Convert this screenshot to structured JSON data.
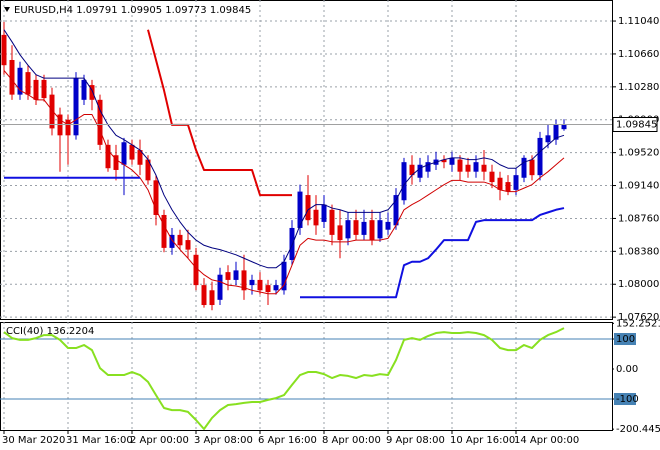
{
  "chart_data": [
    {
      "type": "candlestick",
      "title": "EURUSD,H4",
      "categories": [
        "30 Mar 2020",
        null,
        null,
        null,
        null,
        null,
        null,
        null,
        "31 Mar 16:00",
        null,
        null,
        null,
        null,
        null,
        null,
        null,
        "2 Apr 00:00",
        null,
        null,
        null,
        null,
        null,
        null,
        null,
        "3 Apr 08:00",
        null,
        null,
        null,
        null,
        null,
        null,
        null,
        "6 Apr 16:00",
        null,
        null,
        null,
        null,
        null,
        null,
        null,
        "8 Apr 00:00",
        null,
        null,
        null,
        null,
        null,
        null,
        null,
        "9 Apr 08:00",
        null,
        null,
        null,
        null,
        null,
        null,
        null,
        "10 Apr 16:00",
        null,
        null,
        null,
        null,
        null,
        null,
        null,
        "14 Apr 00:00",
        null,
        null,
        null,
        null,
        null,
        null
      ],
      "open": [
        1.1088,
        1.1059,
        1.1019,
        1.1045,
        1.1036,
        1.1036,
        1.1019,
        1.0996,
        1.099,
        1.0972,
        1.1013,
        1.103,
        1.1013,
        1.0961,
        1.0949,
        1.0938,
        1.0961,
        1.0955,
        1.0944,
        1.092,
        1.088,
        1.0842,
        1.0857,
        1.0851,
        1.0834,
        1.0799,
        1.0793,
        1.0782,
        1.0814,
        1.0805,
        1.0816,
        1.0799,
        1.0805,
        1.0799,
        1.0793,
        1.0793,
        1.0828,
        1.0865,
        1.0903,
        1.0886,
        1.0872,
        1.0886,
        1.0868,
        1.0853,
        1.0874,
        1.0857,
        1.0874,
        1.0853,
        1.0863,
        1.0868,
        1.0897,
        1.0938,
        1.0923,
        1.093,
        1.0938,
        1.0944,
        1.0938,
        1.0944,
        1.0938,
        1.093,
        1.0938,
        1.093,
        1.0923,
        1.0918,
        1.0909,
        1.0923,
        1.0944,
        1.0926,
        1.0964,
        1.0967,
        1.09791
      ],
      "high": [
        1.1103,
        1.1076,
        1.1057,
        1.1053,
        1.1042,
        1.1042,
        1.1027,
        1.1004,
        1.0996,
        1.1045,
        1.1042,
        1.1036,
        1.1019,
        1.0967,
        1.0961,
        1.0969,
        1.0967,
        1.0967,
        1.0949,
        1.0926,
        1.0886,
        1.0865,
        1.0863,
        1.0863,
        1.0842,
        1.0807,
        1.0803,
        1.0819,
        1.0822,
        1.0826,
        1.0834,
        1.0811,
        1.0814,
        1.0805,
        1.0805,
        1.0834,
        1.0874,
        1.0915,
        1.0926,
        1.0903,
        1.0903,
        1.0892,
        1.0886,
        1.0883,
        1.0886,
        1.0886,
        1.0886,
        1.0883,
        1.0883,
        1.0911,
        1.0946,
        1.0949,
        1.0946,
        1.0949,
        1.0953,
        1.0949,
        1.0953,
        1.0949,
        1.0946,
        1.0949,
        1.0955,
        1.0938,
        1.093,
        1.0926,
        1.0934,
        1.0949,
        1.0949,
        1.0976,
        1.0984,
        1.099,
        1.09905
      ],
      "low": [
        1.1042,
        1.1013,
        1.1013,
        1.1013,
        1.1007,
        1.1011,
        1.0972,
        1.093,
        1.0938,
        1.0967,
        1.1007,
        1.1001,
        1.0955,
        1.093,
        1.092,
        1.0903,
        1.0938,
        1.0926,
        1.0915,
        1.0868,
        1.0837,
        1.0834,
        1.084,
        1.083,
        1.0793,
        1.0773,
        1.077,
        1.0776,
        1.0793,
        1.0799,
        1.0782,
        1.0788,
        1.0788,
        1.0776,
        1.0788,
        1.0788,
        1.0822,
        1.0857,
        1.0868,
        1.0857,
        1.0865,
        1.0845,
        1.083,
        1.0845,
        1.0851,
        1.0851,
        1.0845,
        1.0849,
        1.0857,
        1.0863,
        1.0892,
        1.0915,
        1.0918,
        1.0923,
        1.0932,
        1.0934,
        1.093,
        1.092,
        1.0923,
        1.0923,
        1.092,
        1.0911,
        1.0897,
        1.0903,
        1.0903,
        1.0918,
        1.092,
        1.092,
        1.0957,
        1.0961,
        1.09773
      ],
      "close": [
        1.1053,
        1.1019,
        1.105,
        1.1019,
        1.1013,
        1.1015,
        1.098,
        1.0972,
        1.0972,
        1.1038,
        1.1036,
        1.1013,
        1.0961,
        1.0934,
        1.0932,
        1.0964,
        1.0944,
        1.0938,
        1.092,
        1.088,
        1.0842,
        1.0857,
        1.0845,
        1.084,
        1.0799,
        1.0776,
        1.0776,
        1.0811,
        1.0805,
        1.0816,
        1.0793,
        1.0805,
        1.0793,
        1.0791,
        1.0799,
        1.0826,
        1.0865,
        1.0907,
        1.0874,
        1.0868,
        1.0892,
        1.0857,
        1.0851,
        1.0874,
        1.0857,
        1.0872,
        1.0851,
        1.0874,
        1.0872,
        1.0903,
        1.0941,
        1.0926,
        1.0938,
        1.0941,
        1.0944,
        1.0941,
        1.0946,
        1.093,
        1.093,
        1.0941,
        1.093,
        1.0918,
        1.0909,
        1.0907,
        1.0926,
        1.0946,
        1.0926,
        1.0969,
        1.0972,
        1.0984,
        1.09845
      ],
      "up_color": "#0000c8",
      "down_color": "#e00000",
      "lines": [
        {
          "color": "#000080",
          "width": 1,
          "values": [
            1.1094,
            1.108,
            1.1065,
            1.1053,
            1.1042,
            1.1038,
            1.1038,
            1.1038,
            1.1038,
            1.1038,
            1.1038,
            1.1024,
            1.1001,
            1.0984,
            1.0972,
            1.0967,
            1.0961,
            1.0955,
            1.0944,
            1.0926,
            1.0903,
            1.0886,
            1.0872,
            1.086,
            1.0851,
            1.0845,
            1.0842,
            1.084,
            1.0837,
            1.0834,
            1.083,
            1.0826,
            1.0822,
            1.0819,
            1.0819,
            1.0826,
            1.0845,
            1.0868,
            1.0886,
            1.0892,
            1.0892,
            1.0888,
            1.0886,
            1.0883,
            1.0883,
            1.0883,
            1.0883,
            1.0883,
            1.0886,
            1.0897,
            1.0915,
            1.0926,
            1.0934,
            1.0938,
            1.0941,
            1.0944,
            1.0946,
            1.0946,
            1.0944,
            1.0944,
            1.0946,
            1.0944,
            1.0938,
            1.0934,
            1.0934,
            1.0941,
            1.0944,
            1.0953,
            1.0961,
            1.0969,
            1.0972
          ]
        },
        {
          "color": "#d00000",
          "width": 1,
          "values": [
            1.1047,
            1.1036,
            1.1024,
            1.1019,
            1.1013,
            1.1013,
            1.1001,
            1.099,
            1.0984,
            1.099,
            1.0996,
            1.0996,
            1.0978,
            1.0955,
            1.0944,
            1.0938,
            1.0932,
            1.0923,
            1.0909,
            1.0886,
            1.0868,
            1.0851,
            1.084,
            1.083,
            1.0819,
            1.0811,
            1.0805,
            1.0803,
            1.0799,
            1.0798,
            1.0796,
            1.0793,
            1.0791,
            1.0789,
            1.0789,
            1.0799,
            1.0822,
            1.0845,
            1.0853,
            1.0851,
            1.0851,
            1.0849,
            1.0849,
            1.0849,
            1.0851,
            1.0851,
            1.0851,
            1.0851,
            1.0853,
            1.0868,
            1.0886,
            1.0892,
            1.0897,
            1.0903,
            1.0909,
            1.0915,
            1.092,
            1.092,
            1.0918,
            1.0918,
            1.0918,
            1.0915,
            1.0909,
            1.0907,
            1.0907,
            1.0911,
            1.0915,
            1.0923,
            1.093,
            1.0938,
            1.0946
          ]
        },
        {
          "color": "#e00000",
          "width": 2,
          "values": [
            null,
            null,
            null,
            null,
            null,
            null,
            null,
            null,
            null,
            null,
            null,
            null,
            null,
            null,
            null,
            null,
            null,
            null,
            1.1094,
            1.1059,
            1.1024,
            1.0984,
            1.0984,
            1.0984,
            1.0955,
            1.0932,
            1.0932,
            1.0932,
            1.0932,
            1.0932,
            1.0932,
            1.0932,
            1.0903,
            1.0903,
            1.0903,
            1.0903,
            1.0903,
            null,
            null,
            null,
            null,
            null,
            null,
            null,
            null,
            null,
            null,
            null,
            null,
            null,
            null,
            null,
            null,
            null,
            null,
            null,
            null,
            null,
            null,
            null,
            null,
            null,
            null,
            null,
            null,
            null,
            null,
            null,
            null,
            null,
            null
          ]
        },
        {
          "color": "#1010e0",
          "width": 2,
          "values": [
            1.0923,
            1.0923,
            1.0923,
            1.0923,
            1.0923,
            1.0923,
            1.0923,
            1.0923,
            1.0923,
            1.0923,
            1.0923,
            1.0923,
            1.0923,
            1.0923,
            1.0923,
            1.0923,
            1.0923,
            1.0923,
            null,
            null,
            null,
            null,
            null,
            null,
            null,
            null,
            null,
            null,
            null,
            null,
            null,
            null,
            null,
            null,
            null,
            null,
            null,
            1.0785,
            1.0785,
            1.0785,
            1.0785,
            1.0785,
            1.0785,
            1.0785,
            1.0785,
            1.0785,
            1.0785,
            1.0785,
            1.0785,
            1.0785,
            1.0822,
            1.0826,
            1.0826,
            1.083,
            1.084,
            1.0851,
            1.0851,
            1.0851,
            1.0851,
            1.0872,
            1.0874,
            1.0874,
            1.0874,
            1.0874,
            1.0874,
            1.0874,
            1.0874,
            1.088,
            1.0883,
            1.0886,
            1.0888
          ]
        }
      ],
      "ylim": [
        1.07587,
        1.11283
      ],
      "yticks": [
        {
          "value": 1.1104,
          "label": "1.11040"
        },
        {
          "value": 1.1066,
          "label": "1.10660"
        },
        {
          "value": 1.1028,
          "label": "1.10280"
        },
        {
          "value": 1.099,
          "label": "1.09900"
        },
        {
          "value": 1.0952,
          "label": "1.09520"
        },
        {
          "value": 1.0914,
          "label": "1.09140"
        },
        {
          "value": 1.0876,
          "label": "1.08760"
        },
        {
          "value": 1.0838,
          "label": "1.08380"
        },
        {
          "value": 1.08,
          "label": "1.08000"
        },
        {
          "value": 1.0762,
          "label": "1.07620"
        }
      ],
      "grid": true
    },
    {
      "type": "line",
      "title": "CCI(40)",
      "color": "#88e020",
      "values": [
        123,
        103,
        97,
        97,
        103,
        113,
        113,
        97,
        70,
        70,
        80,
        63,
        3,
        -20,
        -20,
        -20,
        -10,
        -20,
        -43,
        -87,
        -130,
        -137,
        -137,
        -143,
        -170,
        -200,
        -163,
        -137,
        -120,
        -117,
        -113,
        -110,
        -110,
        -103,
        -97,
        -87,
        -53,
        -20,
        -10,
        -10,
        -17,
        -30,
        -20,
        -23,
        -30,
        -20,
        -23,
        -17,
        -20,
        30,
        97,
        103,
        97,
        110,
        120,
        123,
        120,
        120,
        123,
        120,
        113,
        97,
        70,
        63,
        63,
        80,
        70,
        97,
        113,
        123,
        136.2204
      ],
      "ylim": [
        -203.3,
        156.7
      ],
      "yticks": [
        152.2521,
        100,
        {
          "value": 0,
          "label": "0.00"
        },
        -100,
        -200.4455
      ],
      "levels": [
        100,
        -100
      ],
      "level_color": "#4682b4"
    }
  ]
}
